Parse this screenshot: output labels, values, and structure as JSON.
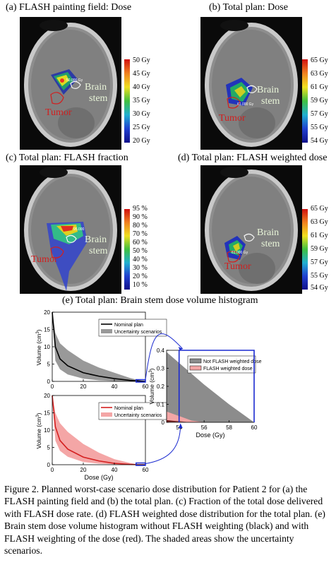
{
  "panels": {
    "a": {
      "title": "(a) FLASH painting field: Dose",
      "colorbar": [
        "50 Gy",
        "45 Gy",
        "40 Gy",
        "35 Gy",
        "30 Gy",
        "25 Gy",
        "20 Gy"
      ],
      "maxlabel": "50.000 Gy"
    },
    "b": {
      "title": "(b) Total plan: Dose",
      "colorbar": [
        "65 Gy",
        "63 Gy",
        "61 Gy",
        "59 Gy",
        "57 Gy",
        "55 Gy",
        "54 Gy"
      ],
      "maxlabel": "61.000 Gy"
    },
    "c": {
      "title": "(c) Total plan: FLASH fraction",
      "colorbar": [
        "95 %",
        "90 %",
        "80 %",
        "70 %",
        "60 %",
        "50 %",
        "40 %",
        "30 %",
        "20 %",
        "10 %"
      ],
      "maxlabel": "95.000"
    },
    "d": {
      "title": "(d) Total plan: FLASH weighted dose",
      "colorbar": [
        "65 Gy",
        "63 Gy",
        "61 Gy",
        "59 Gy",
        "57 Gy",
        "55 Gy",
        "54 Gy"
      ],
      "maxlabel": "61.000 Gy"
    }
  },
  "labels": {
    "brain": "Brain",
    "stem": "stem",
    "tumor": "Tumor"
  },
  "panel_e": {
    "title": "(e) Total plan: Brain stem dose volume histogram",
    "ylabel": "Volume (cm",
    "ylabel_sup": "3",
    "ylabel_end": ")",
    "xlabel": "Dose (Gy)",
    "top_legend": [
      "Nominal plan",
      "Uncertainty scenarios"
    ],
    "bottom_legend": [
      "Nominal plan",
      "Uncertainty scenarios"
    ],
    "zoom_legend": [
      "Not FLASH weighted dose",
      "FLASH weighted dose"
    ],
    "y_ticks_main": [
      "0",
      "5",
      "10",
      "15",
      "20"
    ],
    "x_ticks_main": [
      "0",
      "20",
      "40",
      "60"
    ],
    "y_ticks_zoom": [
      "0",
      "0.1",
      "0.2",
      "0.3",
      "0.4"
    ],
    "x_ticks_zoom": [
      "54",
      "56",
      "58",
      "60"
    ]
  },
  "chart_data": [
    {
      "type": "line",
      "title": "",
      "xlabel": "",
      "ylabel": "Volume (cm3)",
      "xlim": [
        0,
        60
      ],
      "ylim": [
        0,
        20
      ],
      "series": [
        {
          "name": "Nominal plan",
          "x": [
            0,
            2,
            5,
            10,
            20,
            30,
            40,
            50,
            56,
            60
          ],
          "y": [
            20,
            10,
            6.5,
            4.5,
            2.5,
            1.5,
            0.8,
            0.3,
            0.1,
            0
          ]
        },
        {
          "name": "Uncertainty scenarios",
          "x": [
            0,
            2,
            5,
            10,
            20,
            30,
            40,
            50,
            56,
            60
          ],
          "y_low": [
            20,
            6,
            3.5,
            2,
            0.8,
            0.3,
            0.1,
            0,
            0,
            0
          ],
          "y_high": [
            20,
            14,
            11,
            9,
            6,
            4,
            2.5,
            1,
            0.3,
            0
          ]
        }
      ]
    },
    {
      "type": "line",
      "title": "",
      "xlabel": "Dose (Gy)",
      "ylabel": "Volume (cm3)",
      "xlim": [
        0,
        60
      ],
      "ylim": [
        0,
        20
      ],
      "series": [
        {
          "name": "Nominal plan",
          "x": [
            0,
            2,
            5,
            10,
            20,
            30,
            40,
            50,
            55,
            60
          ],
          "y": [
            20,
            11,
            7,
            4.5,
            2.2,
            1.1,
            0.4,
            0.1,
            0,
            0
          ]
        },
        {
          "name": "Uncertainty scenarios",
          "x": [
            0,
            2,
            5,
            10,
            20,
            30,
            40,
            50,
            55,
            60
          ],
          "y_low": [
            20,
            7,
            4,
            2.3,
            0.8,
            0.3,
            0.1,
            0,
            0,
            0
          ],
          "y_high": [
            20,
            15,
            12,
            9.5,
            6,
            3.5,
            1.6,
            0.5,
            0.1,
            0
          ]
        }
      ]
    },
    {
      "type": "area",
      "title": "",
      "xlabel": "Dose (Gy)",
      "ylabel": "Volume (cm3)",
      "xlim": [
        53,
        60
      ],
      "ylim": [
        0,
        0.4
      ],
      "series": [
        {
          "name": "Not FLASH weighted dose",
          "x": [
            53,
            54,
            56,
            58,
            60
          ],
          "y_low": [
            0,
            0,
            0,
            0,
            0
          ],
          "y_high": [
            0.39,
            0.33,
            0.21,
            0.1,
            0
          ]
        },
        {
          "name": "FLASH weighted dose",
          "x": [
            53,
            54,
            55,
            56
          ],
          "y_low": [
            0,
            0,
            0,
            0
          ],
          "y_high": [
            0.06,
            0.035,
            0.01,
            0
          ]
        }
      ]
    }
  ],
  "caption": "Figure 2. Planned worst-case scenario dose distribution for Patient 2 for (a) the FLASH painting field and (b) the total plan. (c) Fraction of the total dose delivered with FLASH dose rate. (d) FLASH weighted dose distribution for the total plan. (e) Brain stem dose volume histogram without FLASH weighting (black) and with FLASH weighting of the dose (red). The shaded areas show the uncertainty scenarios."
}
